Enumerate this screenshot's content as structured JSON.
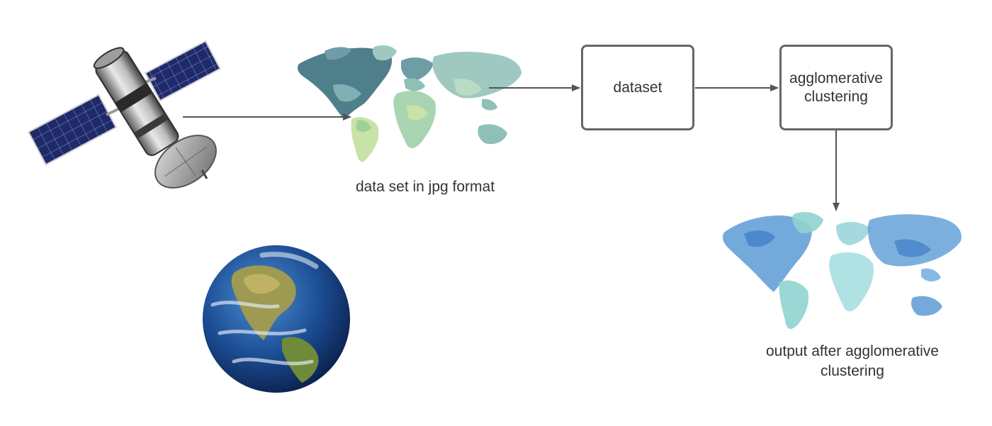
{
  "nodes": {
    "dataset": "dataset",
    "agglomerative_clustering": "agglomerative clustering"
  },
  "captions": {
    "input_map": "data set in jpg format",
    "output_map": "output after agglomerative clustering"
  },
  "icons": {
    "satellite": "satellite-icon",
    "earth": "earth-globe-icon",
    "input_map": "world-map-choropleth-icon",
    "output_map": "world-map-watercolor-icon"
  },
  "colors": {
    "box_border": "#666666",
    "arrow": "#555555",
    "text": "#333333",
    "input_map_dark": "#4f7f8a",
    "input_map_mid": "#8fc0b8",
    "input_map_light": "#c8e3a8",
    "output_map_blue": "#5b9bd5",
    "output_map_teal": "#8fd3d0"
  }
}
